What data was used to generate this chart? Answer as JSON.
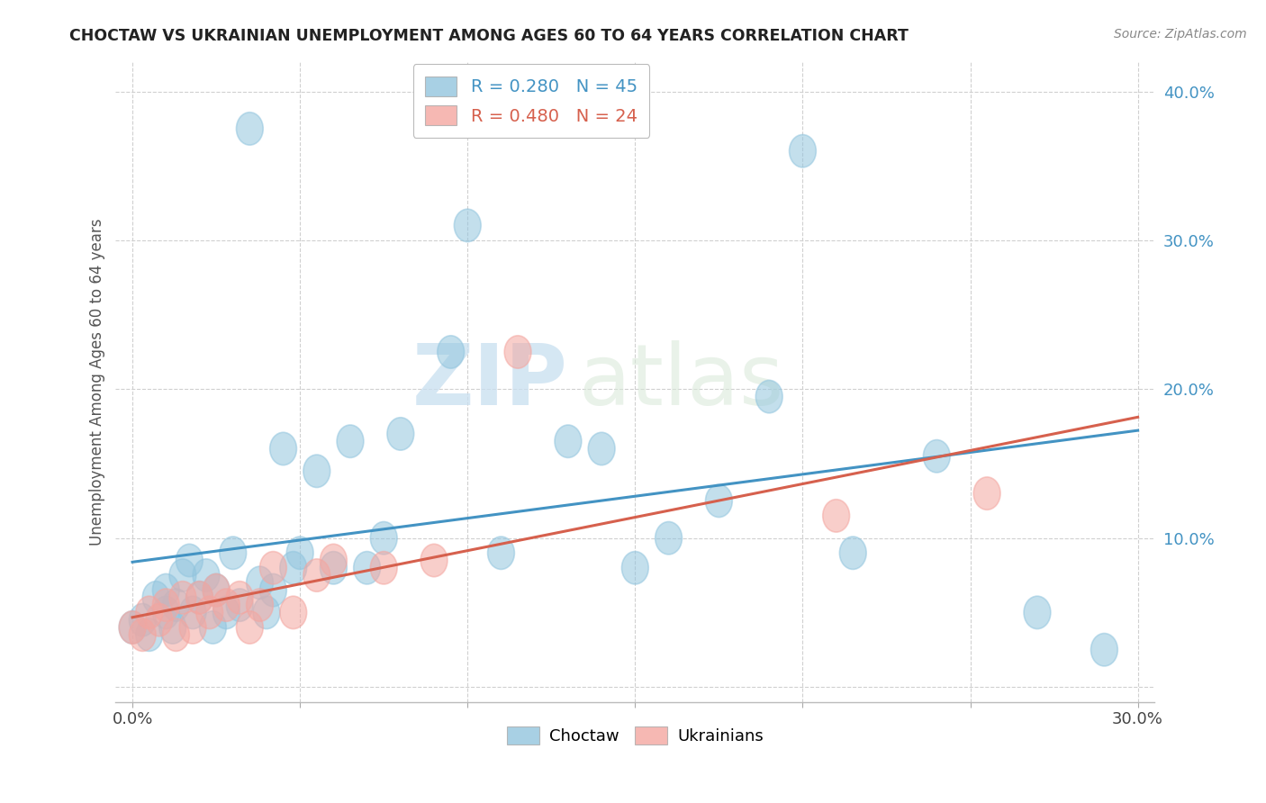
{
  "title": "CHOCTAW VS UKRAINIAN UNEMPLOYMENT AMONG AGES 60 TO 64 YEARS CORRELATION CHART",
  "source": "Source: ZipAtlas.com",
  "ylabel": "Unemployment Among Ages 60 to 64 years",
  "xlim": [
    -0.005,
    0.305
  ],
  "ylim": [
    -0.01,
    0.42
  ],
  "x_ticks": [
    0.0,
    0.05,
    0.1,
    0.15,
    0.2,
    0.25,
    0.3
  ],
  "y_ticks": [
    0.0,
    0.1,
    0.2,
    0.3,
    0.4
  ],
  "choctaw_color": "#92c5de",
  "ukrainian_color": "#f4a6a0",
  "choctaw_R": 0.28,
  "choctaw_N": 45,
  "ukrainian_R": 0.48,
  "ukrainian_N": 24,
  "choctaw_line_color": "#4393c3",
  "ukrainian_line_color": "#d6604d",
  "watermark_zip": "ZIP",
  "watermark_atlas": "atlas",
  "choctaw_x": [
    0.0,
    0.003,
    0.005,
    0.007,
    0.01,
    0.01,
    0.012,
    0.013,
    0.015,
    0.017,
    0.018,
    0.02,
    0.022,
    0.024,
    0.025,
    0.028,
    0.03,
    0.032,
    0.035,
    0.038,
    0.04,
    0.042,
    0.045,
    0.048,
    0.05,
    0.055,
    0.06,
    0.065,
    0.07,
    0.075,
    0.08,
    0.095,
    0.1,
    0.11,
    0.13,
    0.14,
    0.15,
    0.16,
    0.175,
    0.19,
    0.2,
    0.215,
    0.24,
    0.27,
    0.29
  ],
  "choctaw_y": [
    0.04,
    0.045,
    0.035,
    0.06,
    0.05,
    0.065,
    0.04,
    0.055,
    0.075,
    0.085,
    0.05,
    0.06,
    0.075,
    0.04,
    0.065,
    0.05,
    0.09,
    0.055,
    0.375,
    0.07,
    0.05,
    0.065,
    0.16,
    0.08,
    0.09,
    0.145,
    0.08,
    0.165,
    0.08,
    0.1,
    0.17,
    0.225,
    0.31,
    0.09,
    0.165,
    0.16,
    0.08,
    0.1,
    0.125,
    0.195,
    0.36,
    0.09,
    0.155,
    0.05,
    0.025
  ],
  "ukrainian_x": [
    0.0,
    0.003,
    0.005,
    0.008,
    0.01,
    0.013,
    0.015,
    0.018,
    0.02,
    0.023,
    0.025,
    0.028,
    0.032,
    0.035,
    0.038,
    0.042,
    0.048,
    0.055,
    0.06,
    0.075,
    0.09,
    0.115,
    0.21,
    0.255
  ],
  "ukrainian_y": [
    0.04,
    0.035,
    0.05,
    0.045,
    0.055,
    0.035,
    0.06,
    0.04,
    0.06,
    0.05,
    0.065,
    0.055,
    0.06,
    0.04,
    0.055,
    0.08,
    0.05,
    0.075,
    0.085,
    0.08,
    0.085,
    0.225,
    0.115,
    0.13
  ]
}
